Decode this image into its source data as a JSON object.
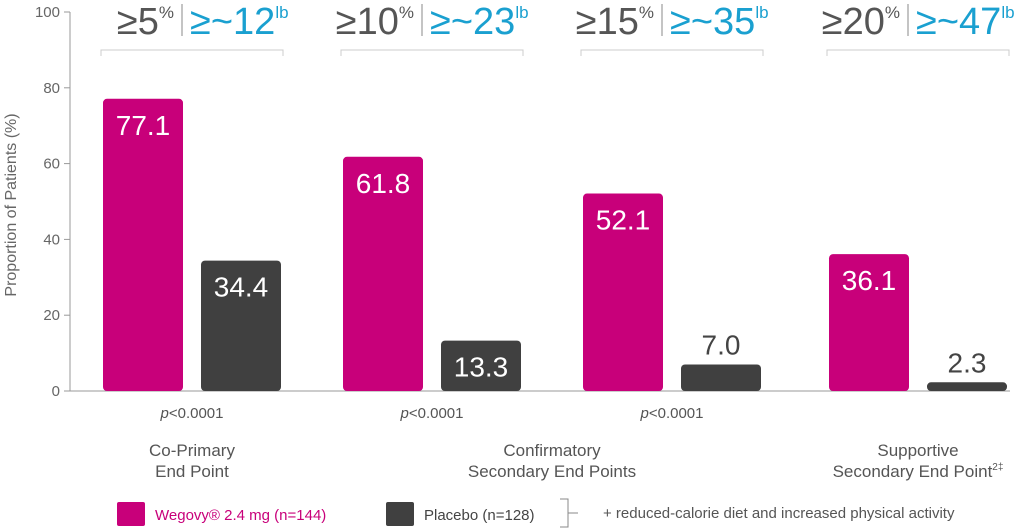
{
  "chart_data": {
    "type": "bar",
    "ylabel": "Proportion of Patients (%)",
    "ylim": [
      0,
      100
    ],
    "yticks": [
      0,
      20,
      40,
      60,
      80,
      100
    ],
    "grid": false,
    "categories": [
      {
        "pct_label": "5",
        "lb_label": "12"
      },
      {
        "pct_label": "10",
        "lb_label": "23"
      },
      {
        "pct_label": "15",
        "lb_label": "35"
      },
      {
        "pct_label": "20",
        "lb_label": "47"
      }
    ],
    "header_prefix": "≥",
    "header_lb_prefix": "≥~",
    "pct_unit": "%",
    "lb_unit": "lb",
    "series": [
      {
        "name": "Wegovy® 2.4 mg (n=144)",
        "color": "#c8007a",
        "values": [
          77.1,
          61.8,
          52.1,
          36.1
        ],
        "labels": [
          "77.1",
          "61.8",
          "52.1",
          "36.1"
        ]
      },
      {
        "name": "Placebo (n=128)",
        "color": "#404040",
        "values": [
          34.4,
          13.3,
          7.0,
          2.3
        ],
        "labels": [
          "34.4",
          "13.3",
          "7.0",
          "2.3"
        ]
      }
    ],
    "p_values": [
      "<0.0001",
      "<0.0001",
      "<0.0001"
    ],
    "p_prefix": "p",
    "groups": [
      {
        "lines": [
          "Co-Primary",
          "End Point"
        ]
      },
      {
        "lines": [
          "Confirmatory",
          "Secondary End Points"
        ]
      },
      {
        "lines": [
          "Supportive",
          "Secondary End Point"
        ],
        "sup": "2‡"
      }
    ],
    "legend_note": "+ reduced-calorie diet and increased physical activity",
    "colors": {
      "wegovy": "#c8007a",
      "placebo": "#404040",
      "lb_accent": "#1aa0d0",
      "axis": "#999999"
    }
  }
}
